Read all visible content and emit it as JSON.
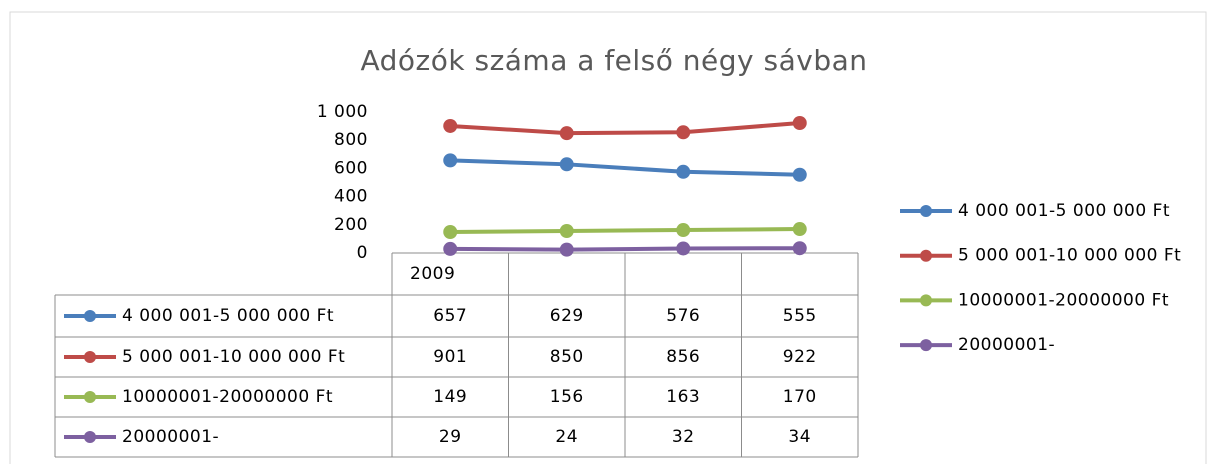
{
  "chart_data": {
    "type": "line",
    "title": "Adózók száma a felső négy sávban",
    "categories": [
      "2009",
      null,
      null,
      null
    ],
    "series": [
      {
        "name": "4 000 001-5 000 000 Ft",
        "color": "#4a7ebb",
        "values": [
          657,
          629,
          576,
          555
        ]
      },
      {
        "name": "5 000 001-10 000 000 Ft",
        "color": "#be4b48",
        "values": [
          901,
          850,
          856,
          922
        ]
      },
      {
        "name": "10000001-20000000 Ft",
        "color": "#98b954",
        "values": [
          149,
          156,
          163,
          170
        ]
      },
      {
        "name": "20000001-",
        "color": "#7d60a0",
        "values": [
          29,
          24,
          32,
          34
        ]
      }
    ],
    "ylim": [
      0,
      1000
    ],
    "yticks": [
      0,
      200,
      400,
      600,
      800,
      {
        "value": 1000,
        "label": "1 000"
      }
    ],
    "grid": false,
    "legend": "right",
    "data_table": true
  }
}
